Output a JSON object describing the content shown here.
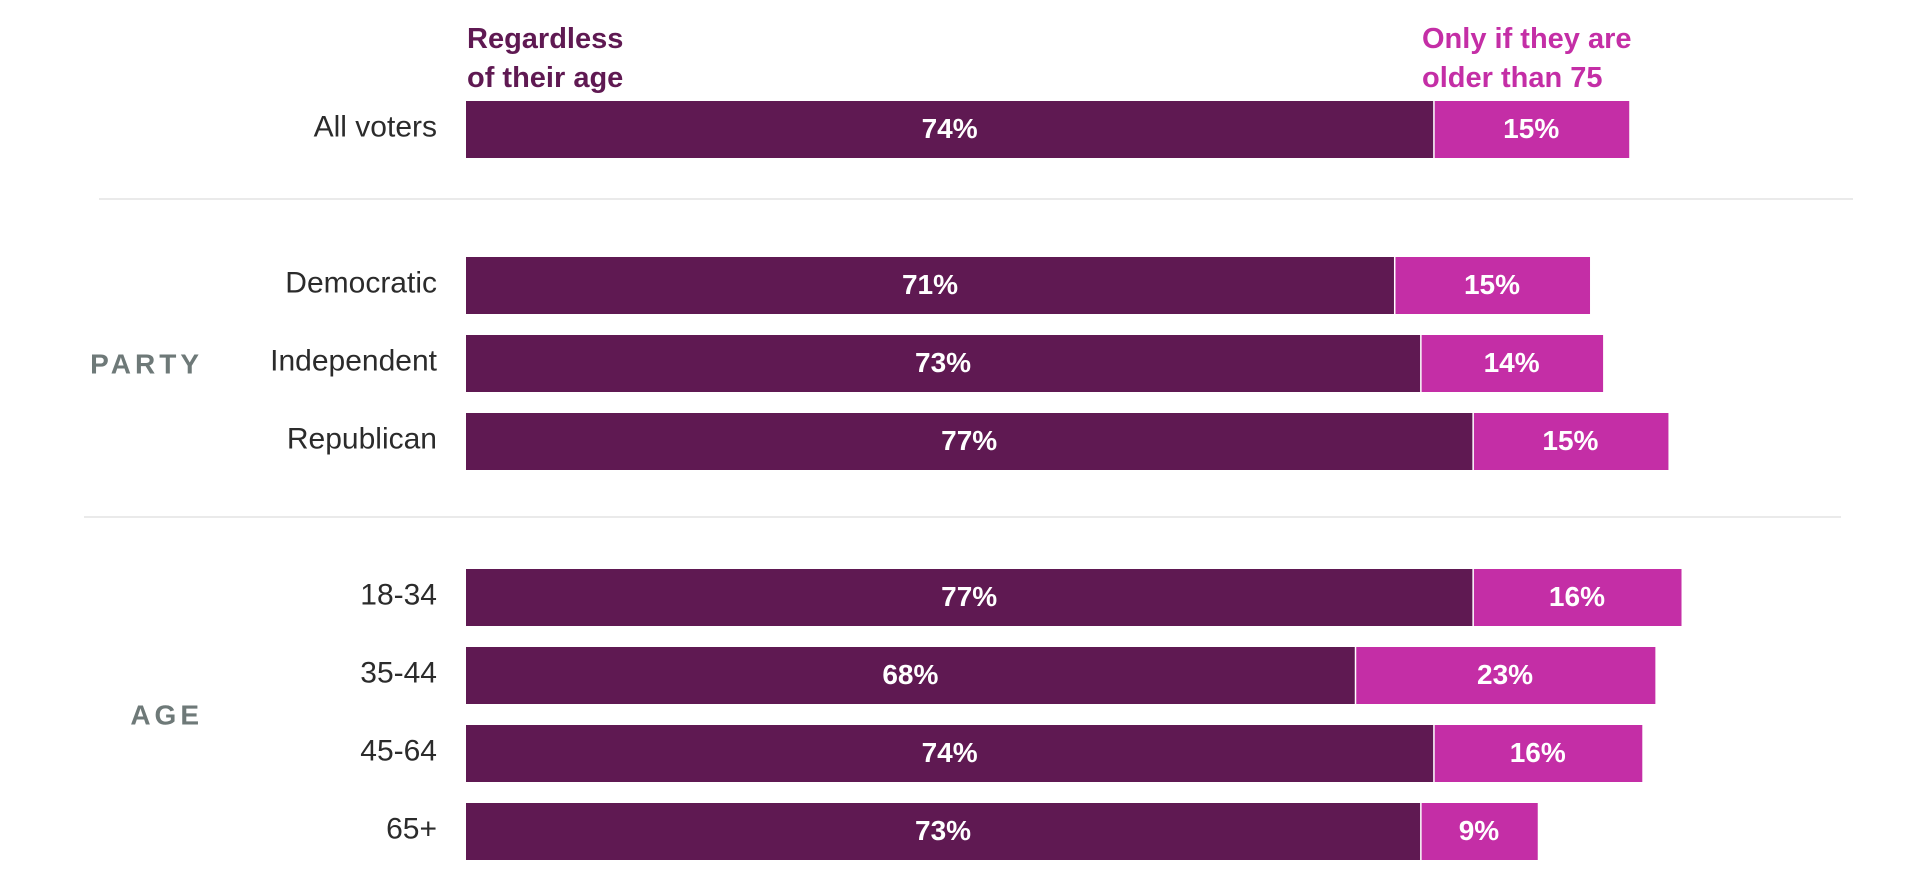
{
  "chart_data": {
    "type": "bar",
    "stacked": true,
    "orientation": "horizontal",
    "colors": {
      "regardless": "#5f1952",
      "older": "#c42ea6",
      "divider": "#e3e3e3",
      "group_label": "#6e7978"
    },
    "legend": {
      "regardless": [
        "Regardless",
        "of their age"
      ],
      "older": [
        "Only if they are",
        "older than 75"
      ]
    },
    "groups": [
      {
        "label": "",
        "rows": [
          {
            "label": "All voters",
            "regardless": 74,
            "older": 15
          }
        ]
      },
      {
        "label": "PARTY",
        "rows": [
          {
            "label": "Democratic",
            "regardless": 71,
            "older": 15
          },
          {
            "label": "Independent",
            "regardless": 73,
            "older": 14
          },
          {
            "label": "Republican",
            "regardless": 77,
            "older": 15
          }
        ]
      },
      {
        "label": "AGE",
        "rows": [
          {
            "label": "18-34",
            "regardless": 77,
            "older": 16
          },
          {
            "label": "35-44",
            "regardless": 68,
            "older": 23
          },
          {
            "label": "45-64",
            "regardless": 74,
            "older": 16
          },
          {
            "label": "65+",
            "regardless": 73,
            "older": 9
          }
        ]
      }
    ],
    "xlim": [
      0,
      100
    ]
  }
}
